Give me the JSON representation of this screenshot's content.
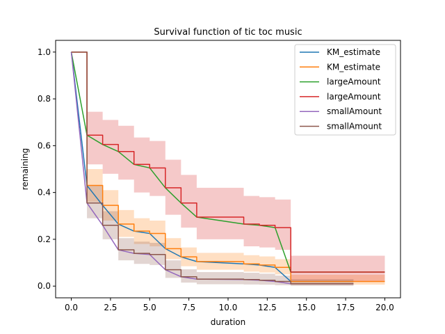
{
  "chart_data": {
    "type": "line",
    "title": "Survival function of tic toc music",
    "xlabel": "duration",
    "ylabel": "remaining",
    "xlim": [
      -1,
      21
    ],
    "ylim": [
      -0.05,
      1.05
    ],
    "xticks": [
      "0.0",
      "2.5",
      "5.0",
      "7.5",
      "10.0",
      "12.5",
      "15.0",
      "17.5",
      "20.0"
    ],
    "yticks": [
      "0.0",
      "0.2",
      "0.4",
      "0.6",
      "0.8",
      "1.0"
    ],
    "grid": false,
    "legend_position": "top-right",
    "series": [
      {
        "name": "KM_estimate",
        "style": "line",
        "color": "#1f77b4",
        "x": [
          0,
          1,
          2,
          3,
          4,
          5,
          6,
          7,
          8,
          11,
          12,
          13,
          14,
          18
        ],
        "y": [
          1.0,
          0.43,
          0.345,
          0.265,
          0.235,
          0.225,
          0.16,
          0.125,
          0.105,
          0.095,
          0.09,
          0.08,
          0.02,
          0.02
        ]
      },
      {
        "name": "KM_estimate",
        "style": "step",
        "color": "#ff7f0e",
        "x": [
          0,
          1,
          2,
          3,
          4,
          5,
          6,
          7,
          8,
          11,
          12,
          13,
          14,
          20
        ],
        "y": [
          1.0,
          0.43,
          0.345,
          0.265,
          0.235,
          0.225,
          0.16,
          0.125,
          0.105,
          0.095,
          0.09,
          0.08,
          0.02,
          0.02
        ],
        "ci_lower": [
          1.0,
          0.36,
          0.28,
          0.21,
          0.18,
          0.17,
          0.115,
          0.085,
          0.07,
          0.062,
          0.058,
          0.05,
          0.006,
          0.006
        ],
        "ci_upper": [
          1.0,
          0.5,
          0.41,
          0.325,
          0.29,
          0.28,
          0.205,
          0.165,
          0.142,
          0.132,
          0.127,
          0.115,
          0.048,
          0.048
        ]
      },
      {
        "name": "largeAmount",
        "style": "line",
        "color": "#2ca02c",
        "x": [
          0,
          1,
          2,
          3,
          4,
          5,
          6,
          7,
          8,
          11,
          12,
          13,
          14,
          20
        ],
        "y": [
          1.0,
          0.645,
          0.605,
          0.575,
          0.52,
          0.505,
          0.42,
          0.355,
          0.295,
          0.265,
          0.26,
          0.25,
          0.06,
          0.06
        ]
      },
      {
        "name": "largeAmount",
        "style": "step",
        "color": "#d62728",
        "x": [
          0,
          1,
          2,
          3,
          4,
          5,
          6,
          7,
          8,
          11,
          12,
          13,
          14,
          20
        ],
        "y": [
          1.0,
          0.645,
          0.605,
          0.575,
          0.52,
          0.505,
          0.42,
          0.355,
          0.295,
          0.265,
          0.26,
          0.25,
          0.06,
          0.06
        ],
        "ci_lower": [
          1.0,
          0.52,
          0.48,
          0.455,
          0.4,
          0.385,
          0.305,
          0.25,
          0.2,
          0.17,
          0.165,
          0.155,
          0.02,
          0.02
        ],
        "ci_upper": [
          1.0,
          0.745,
          0.71,
          0.685,
          0.635,
          0.62,
          0.54,
          0.475,
          0.42,
          0.385,
          0.38,
          0.37,
          0.13,
          0.13
        ]
      },
      {
        "name": "smallAmount",
        "style": "line",
        "color": "#9467bd",
        "x": [
          0,
          1,
          2,
          3,
          4,
          5,
          6,
          7,
          8,
          11,
          12,
          13,
          14,
          18
        ],
        "y": [
          1.0,
          0.355,
          0.26,
          0.155,
          0.14,
          0.135,
          0.07,
          0.04,
          0.03,
          0.028,
          0.025,
          0.02,
          0.01,
          0.01
        ]
      },
      {
        "name": "smallAmount",
        "style": "step",
        "color": "#8c564b",
        "x": [
          0,
          1,
          2,
          3,
          4,
          5,
          6,
          7,
          8,
          11,
          12,
          13,
          14,
          18
        ],
        "y": [
          1.0,
          0.355,
          0.26,
          0.155,
          0.14,
          0.135,
          0.07,
          0.04,
          0.03,
          0.028,
          0.025,
          0.02,
          0.01,
          0.01
        ],
        "ci_lower": [
          1.0,
          0.29,
          0.2,
          0.11,
          0.095,
          0.09,
          0.035,
          0.015,
          0.008,
          0.007,
          0.006,
          0.004,
          0.001,
          0.001
        ],
        "ci_upper": [
          1.0,
          0.43,
          0.32,
          0.205,
          0.19,
          0.185,
          0.11,
          0.072,
          0.06,
          0.057,
          0.053,
          0.045,
          0.03,
          0.03
        ]
      }
    ]
  }
}
